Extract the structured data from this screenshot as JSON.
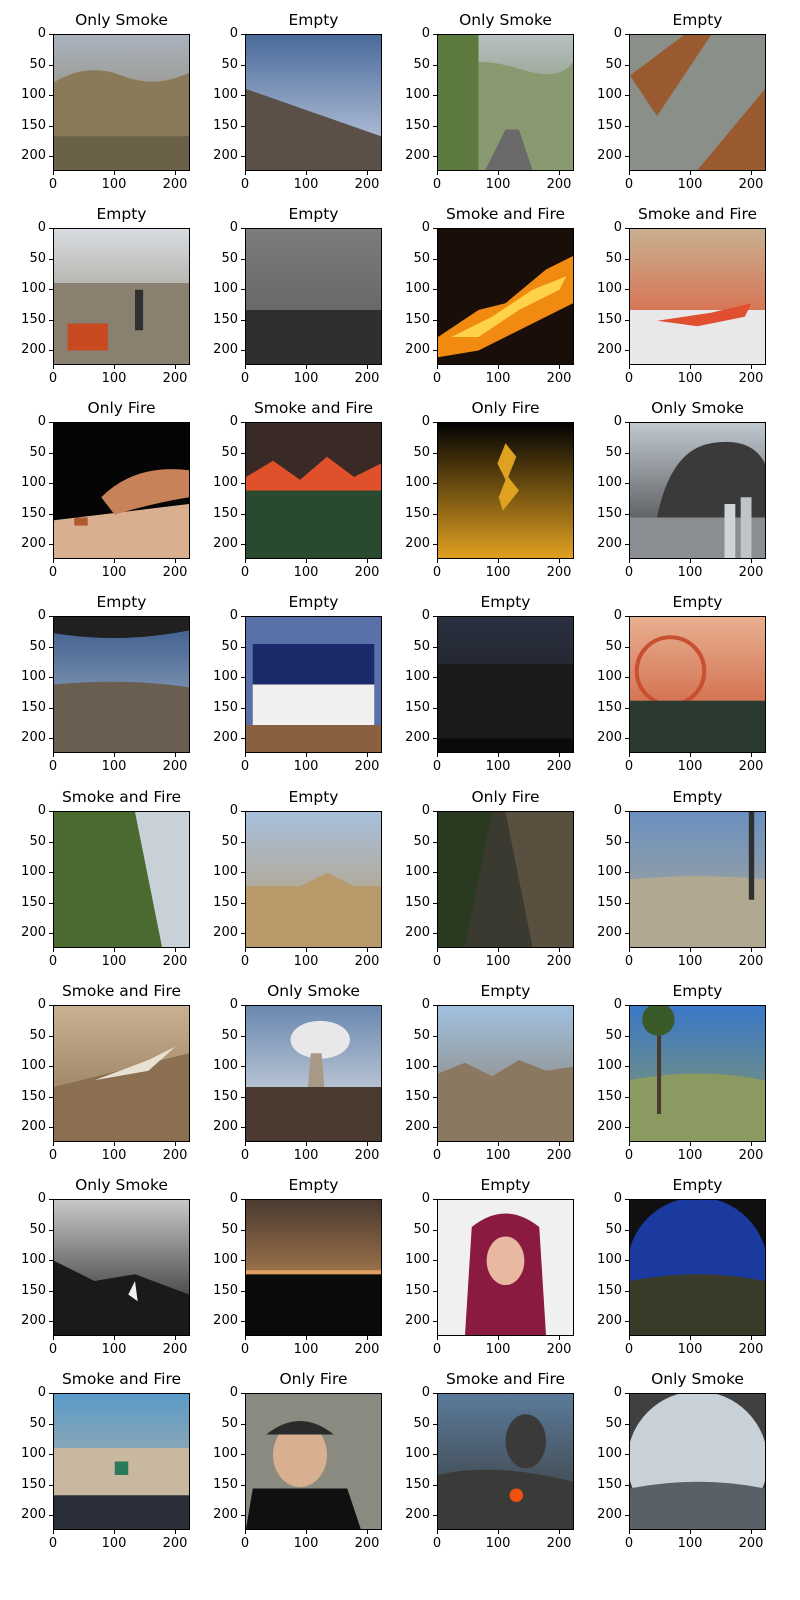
{
  "chart_data": {
    "type": "image_grid",
    "rows": 8,
    "cols": 4,
    "axis": {
      "x_ticks": [
        0,
        100,
        200
      ],
      "y_ticks": [
        0,
        50,
        100,
        150,
        200
      ],
      "xlim": [
        0,
        224
      ],
      "ylim": [
        224,
        0
      ]
    },
    "panels": [
      {
        "title": "Only Smoke",
        "scene": "hills",
        "colors": [
          "#a9b2bd",
          "#8a7a5a",
          "#6b6048"
        ]
      },
      {
        "title": "Empty",
        "scene": "sky-hill",
        "colors": [
          "#4a6a9a",
          "#c9d3e6",
          "#5a5048"
        ]
      },
      {
        "title": "Only Smoke",
        "scene": "road",
        "colors": [
          "#b9c0c2",
          "#5d7a3e",
          "#3f4a35"
        ]
      },
      {
        "title": "Empty",
        "scene": "interior",
        "colors": [
          "#8a8f8a",
          "#9a5a30",
          "#404040"
        ]
      },
      {
        "title": "Empty",
        "scene": "mall",
        "colors": [
          "#d8dce0",
          "#8a8070",
          "#c84a20"
        ]
      },
      {
        "title": "Empty",
        "scene": "fog",
        "colors": [
          "#7a7c7e",
          "#5a5c5c",
          "#2e3030"
        ]
      },
      {
        "title": "Smoke and Fire",
        "scene": "fire-night",
        "colors": [
          "#1a0e08",
          "#f08a10",
          "#ffd24a"
        ]
      },
      {
        "title": "Smoke and Fire",
        "scene": "smoke-fire",
        "colors": [
          "#c8b090",
          "#e05030",
          "#e8e8ea"
        ]
      },
      {
        "title": "Only Fire",
        "scene": "match",
        "colors": [
          "#050505",
          "#c8825a",
          "#d8b090"
        ]
      },
      {
        "title": "Smoke and Fire",
        "scene": "forest-fire",
        "colors": [
          "#3a2a25",
          "#e0502a",
          "#2a4a30"
        ]
      },
      {
        "title": "Only Fire",
        "scene": "dark-flame",
        "colors": [
          "#020202",
          "#e0a020",
          "#020202"
        ]
      },
      {
        "title": "Only Smoke",
        "scene": "city-smoke",
        "colors": [
          "#c0c8d0",
          "#3a3a3a",
          "#8a8e92"
        ]
      },
      {
        "title": "Empty",
        "scene": "valley",
        "colors": [
          "#3a5a8a",
          "#a9b8cc",
          "#6a5e50"
        ]
      },
      {
        "title": "Empty",
        "scene": "team",
        "colors": [
          "#5a70a8",
          "#f0f0f0",
          "#8a6040"
        ]
      },
      {
        "title": "Empty",
        "scene": "night",
        "colors": [
          "#2a3040",
          "#1a1a1a",
          "#0a0a0a"
        ]
      },
      {
        "title": "Empty",
        "scene": "pier",
        "colors": [
          "#e8b090",
          "#c85030",
          "#2a3a30"
        ]
      },
      {
        "title": "Smoke and Fire",
        "scene": "aerial",
        "colors": [
          "#4a6a30",
          "#c8d0d8",
          "#3a4a28"
        ]
      },
      {
        "title": "Empty",
        "scene": "desert",
        "colors": [
          "#a8c0dc",
          "#b89a6a",
          "#8a6a4a"
        ]
      },
      {
        "title": "Only Fire",
        "scene": "aerial-dark",
        "colors": [
          "#3a3a30",
          "#2a3a20",
          "#5a5040"
        ]
      },
      {
        "title": "Empty",
        "scene": "tower",
        "colors": [
          "#6a90c0",
          "#b0a890",
          "#6a6050"
        ]
      },
      {
        "title": "Smoke and Fire",
        "scene": "hill-smoke",
        "colors": [
          "#c8b090",
          "#8a7050",
          "#e8e0d0"
        ]
      },
      {
        "title": "Only Smoke",
        "scene": "plume",
        "colors": [
          "#6a88b0",
          "#e8e8e8",
          "#4a3a30"
        ]
      },
      {
        "title": "Empty",
        "scene": "mountains",
        "colors": [
          "#a0c0e0",
          "#8a7860",
          "#6a5a48"
        ]
      },
      {
        "title": "Empty",
        "scene": "palms",
        "colors": [
          "#3a78c8",
          "#8a9a60",
          "#606050"
        ]
      },
      {
        "title": "Only Smoke",
        "scene": "grey-ridge",
        "colors": [
          "#c8c8c8",
          "#1a1a1a",
          "#787878"
        ]
      },
      {
        "title": "Empty",
        "scene": "city-night",
        "colors": [
          "#4a3a30",
          "#e0a060",
          "#0a0a0a"
        ]
      },
      {
        "title": "Empty",
        "scene": "hood",
        "colors": [
          "#f0f0f0",
          "#8a1a40",
          "#e8b8a0"
        ]
      },
      {
        "title": "Empty",
        "scene": "fisheye-night",
        "colors": [
          "#1a3aa0",
          "#8a90c0",
          "#3a3a28"
        ]
      },
      {
        "title": "Smoke and Fire",
        "scene": "building",
        "colors": [
          "#5a9ac8",
          "#c8b8a0",
          "#2a2e38"
        ]
      },
      {
        "title": "Only Fire",
        "scene": "man",
        "colors": [
          "#2a2a2a",
          "#d8b090",
          "#101010"
        ]
      },
      {
        "title": "Smoke and Fire",
        "scene": "volcano",
        "colors": [
          "#5a7a9a",
          "#3a3a38",
          "#f05010"
        ]
      },
      {
        "title": "Only Smoke",
        "scene": "fisheye-day",
        "colors": [
          "#c8d0d8",
          "#8a9098",
          "#5a6068"
        ]
      }
    ]
  }
}
